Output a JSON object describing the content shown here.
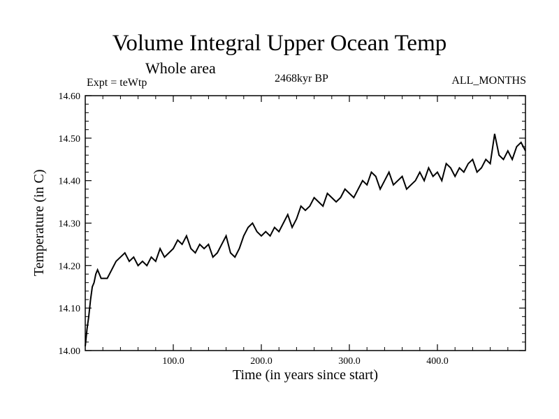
{
  "chart_data": {
    "type": "line",
    "title": "Volume Integral Upper Ocean Temp",
    "subtitle": "Whole area",
    "experiment_label": "Expt = teWtp",
    "period_label": "2468kyr BP",
    "months_label": "ALL_MONTHS",
    "xlabel": "Time (in years since start)",
    "ylabel": "Temperature (in C)",
    "xlim": [
      0,
      500
    ],
    "ylim": [
      14.0,
      14.6
    ],
    "x_ticks": [
      100,
      200,
      300,
      400
    ],
    "x_tick_labels": [
      "100.0",
      "200.0",
      "300.0",
      "400.0"
    ],
    "y_ticks": [
      14.0,
      14.1,
      14.2,
      14.3,
      14.4,
      14.5,
      14.6
    ],
    "y_tick_labels": [
      "14.00",
      "14.10",
      "14.20",
      "14.30",
      "14.40",
      "14.50",
      "14.60"
    ],
    "grid": false,
    "series": [
      {
        "name": "Volume Integral Upper Ocean Temp",
        "x": [
          0,
          2,
          4,
          6,
          8,
          10,
          12,
          14,
          16,
          18,
          20,
          25,
          30,
          35,
          40,
          45,
          50,
          55,
          60,
          65,
          70,
          75,
          80,
          85,
          90,
          95,
          100,
          105,
          110,
          115,
          120,
          125,
          130,
          135,
          140,
          145,
          150,
          155,
          160,
          165,
          170,
          175,
          180,
          185,
          190,
          195,
          200,
          205,
          210,
          215,
          220,
          225,
          230,
          235,
          240,
          245,
          250,
          255,
          260,
          265,
          270,
          275,
          280,
          285,
          290,
          295,
          300,
          305,
          310,
          315,
          320,
          325,
          330,
          335,
          340,
          345,
          350,
          355,
          360,
          365,
          370,
          375,
          380,
          385,
          390,
          395,
          400,
          405,
          410,
          415,
          420,
          425,
          430,
          435,
          440,
          445,
          450,
          455,
          460,
          465,
          470,
          475,
          480,
          485,
          490,
          495,
          500
        ],
        "values": [
          14.01,
          14.05,
          14.08,
          14.12,
          14.15,
          14.16,
          14.18,
          14.19,
          14.18,
          14.17,
          14.17,
          14.17,
          14.19,
          14.21,
          14.22,
          14.23,
          14.21,
          14.22,
          14.2,
          14.21,
          14.2,
          14.22,
          14.21,
          14.24,
          14.22,
          14.23,
          14.24,
          14.26,
          14.25,
          14.27,
          14.24,
          14.23,
          14.25,
          14.24,
          14.25,
          14.22,
          14.23,
          14.25,
          14.27,
          14.23,
          14.22,
          14.24,
          14.27,
          14.29,
          14.3,
          14.28,
          14.27,
          14.28,
          14.27,
          14.29,
          14.28,
          14.3,
          14.32,
          14.29,
          14.31,
          14.34,
          14.33,
          14.34,
          14.36,
          14.35,
          14.34,
          14.37,
          14.36,
          14.35,
          14.36,
          14.38,
          14.37,
          14.36,
          14.38,
          14.4,
          14.39,
          14.42,
          14.41,
          14.38,
          14.4,
          14.42,
          14.39,
          14.4,
          14.41,
          14.38,
          14.39,
          14.4,
          14.42,
          14.4,
          14.43,
          14.41,
          14.42,
          14.4,
          14.44,
          14.43,
          14.41,
          14.43,
          14.42,
          14.44,
          14.45,
          14.42,
          14.43,
          14.45,
          14.44,
          14.51,
          14.46,
          14.45,
          14.47,
          14.45,
          14.48,
          14.49,
          14.47
        ]
      }
    ]
  }
}
